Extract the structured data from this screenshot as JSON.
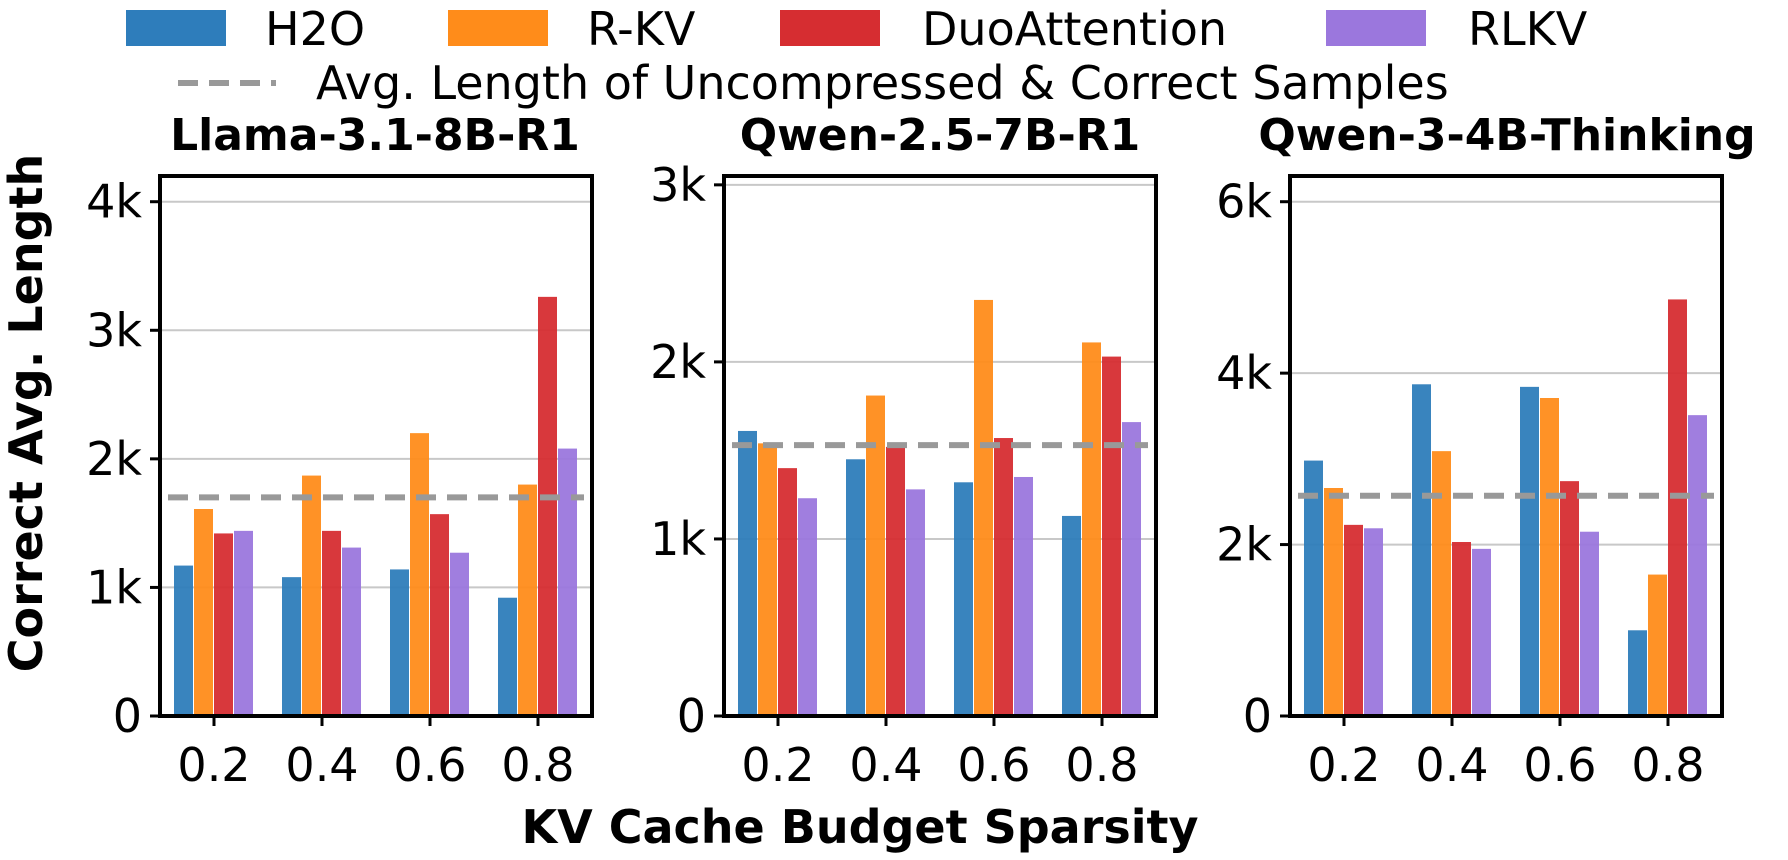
{
  "colors": {
    "H2O": "#2e7dbb",
    "R-KV": "#ff8c1a",
    "DuoAttention": "#d62d31",
    "RLKV": "#9b77dd",
    "reference": "#999999",
    "grid": "#c8c8c8"
  },
  "legend": {
    "series": [
      "H2O",
      "R-KV",
      "DuoAttention",
      "RLKV"
    ],
    "reference_label": "Avg. Length of Uncompressed & Correct Samples"
  },
  "labels": {
    "ylabel": "Correct Avg. Length",
    "xlabel": "KV Cache Budget Sparsity"
  },
  "chart_data": [
    {
      "type": "bar",
      "title": "Llama-3.1-8B-R1",
      "categories": [
        "0.2",
        "0.4",
        "0.6",
        "0.8"
      ],
      "series": [
        {
          "name": "H2O",
          "values": [
            1170,
            1080,
            1140,
            920
          ]
        },
        {
          "name": "R-KV",
          "values": [
            1610,
            1870,
            2200,
            1800
          ]
        },
        {
          "name": "DuoAttention",
          "values": [
            1420,
            1440,
            1570,
            3260
          ]
        },
        {
          "name": "RLKV",
          "values": [
            1440,
            1310,
            1270,
            2080
          ]
        }
      ],
      "reference": 1700,
      "ylim": [
        0,
        4200
      ],
      "yticks": [
        0,
        1000,
        2000,
        3000,
        4000
      ],
      "yticklabels": [
        "0",
        "1k",
        "2k",
        "3k",
        "4k"
      ]
    },
    {
      "type": "bar",
      "title": "Qwen-2.5-7B-R1",
      "categories": [
        "0.2",
        "0.4",
        "0.6",
        "0.8"
      ],
      "series": [
        {
          "name": "H2O",
          "values": [
            1610,
            1450,
            1320,
            1130
          ]
        },
        {
          "name": "R-KV",
          "values": [
            1540,
            1810,
            2350,
            2110
          ]
        },
        {
          "name": "DuoAttention",
          "values": [
            1400,
            1520,
            1570,
            2030
          ]
        },
        {
          "name": "RLKV",
          "values": [
            1230,
            1280,
            1350,
            1660
          ]
        }
      ],
      "reference": 1530,
      "ylim": [
        0,
        3050
      ],
      "yticks": [
        0,
        1000,
        2000,
        3000
      ],
      "yticklabels": [
        "0",
        "1k",
        "2k",
        "3k"
      ]
    },
    {
      "type": "bar",
      "title": "Qwen-3-4B-Thinking",
      "categories": [
        "0.2",
        "0.4",
        "0.6",
        "0.8"
      ],
      "series": [
        {
          "name": "H2O",
          "values": [
            2980,
            3870,
            3840,
            1000
          ]
        },
        {
          "name": "R-KV",
          "values": [
            2660,
            3090,
            3710,
            1650
          ]
        },
        {
          "name": "DuoAttention",
          "values": [
            2230,
            2030,
            2740,
            4860
          ]
        },
        {
          "name": "RLKV",
          "values": [
            2190,
            1950,
            2150,
            3510
          ]
        }
      ],
      "reference": 2570,
      "ylim": [
        0,
        6300
      ],
      "yticks": [
        0,
        2000,
        4000,
        6000
      ],
      "yticklabels": [
        "0",
        "2k",
        "4k",
        "6k"
      ]
    }
  ]
}
